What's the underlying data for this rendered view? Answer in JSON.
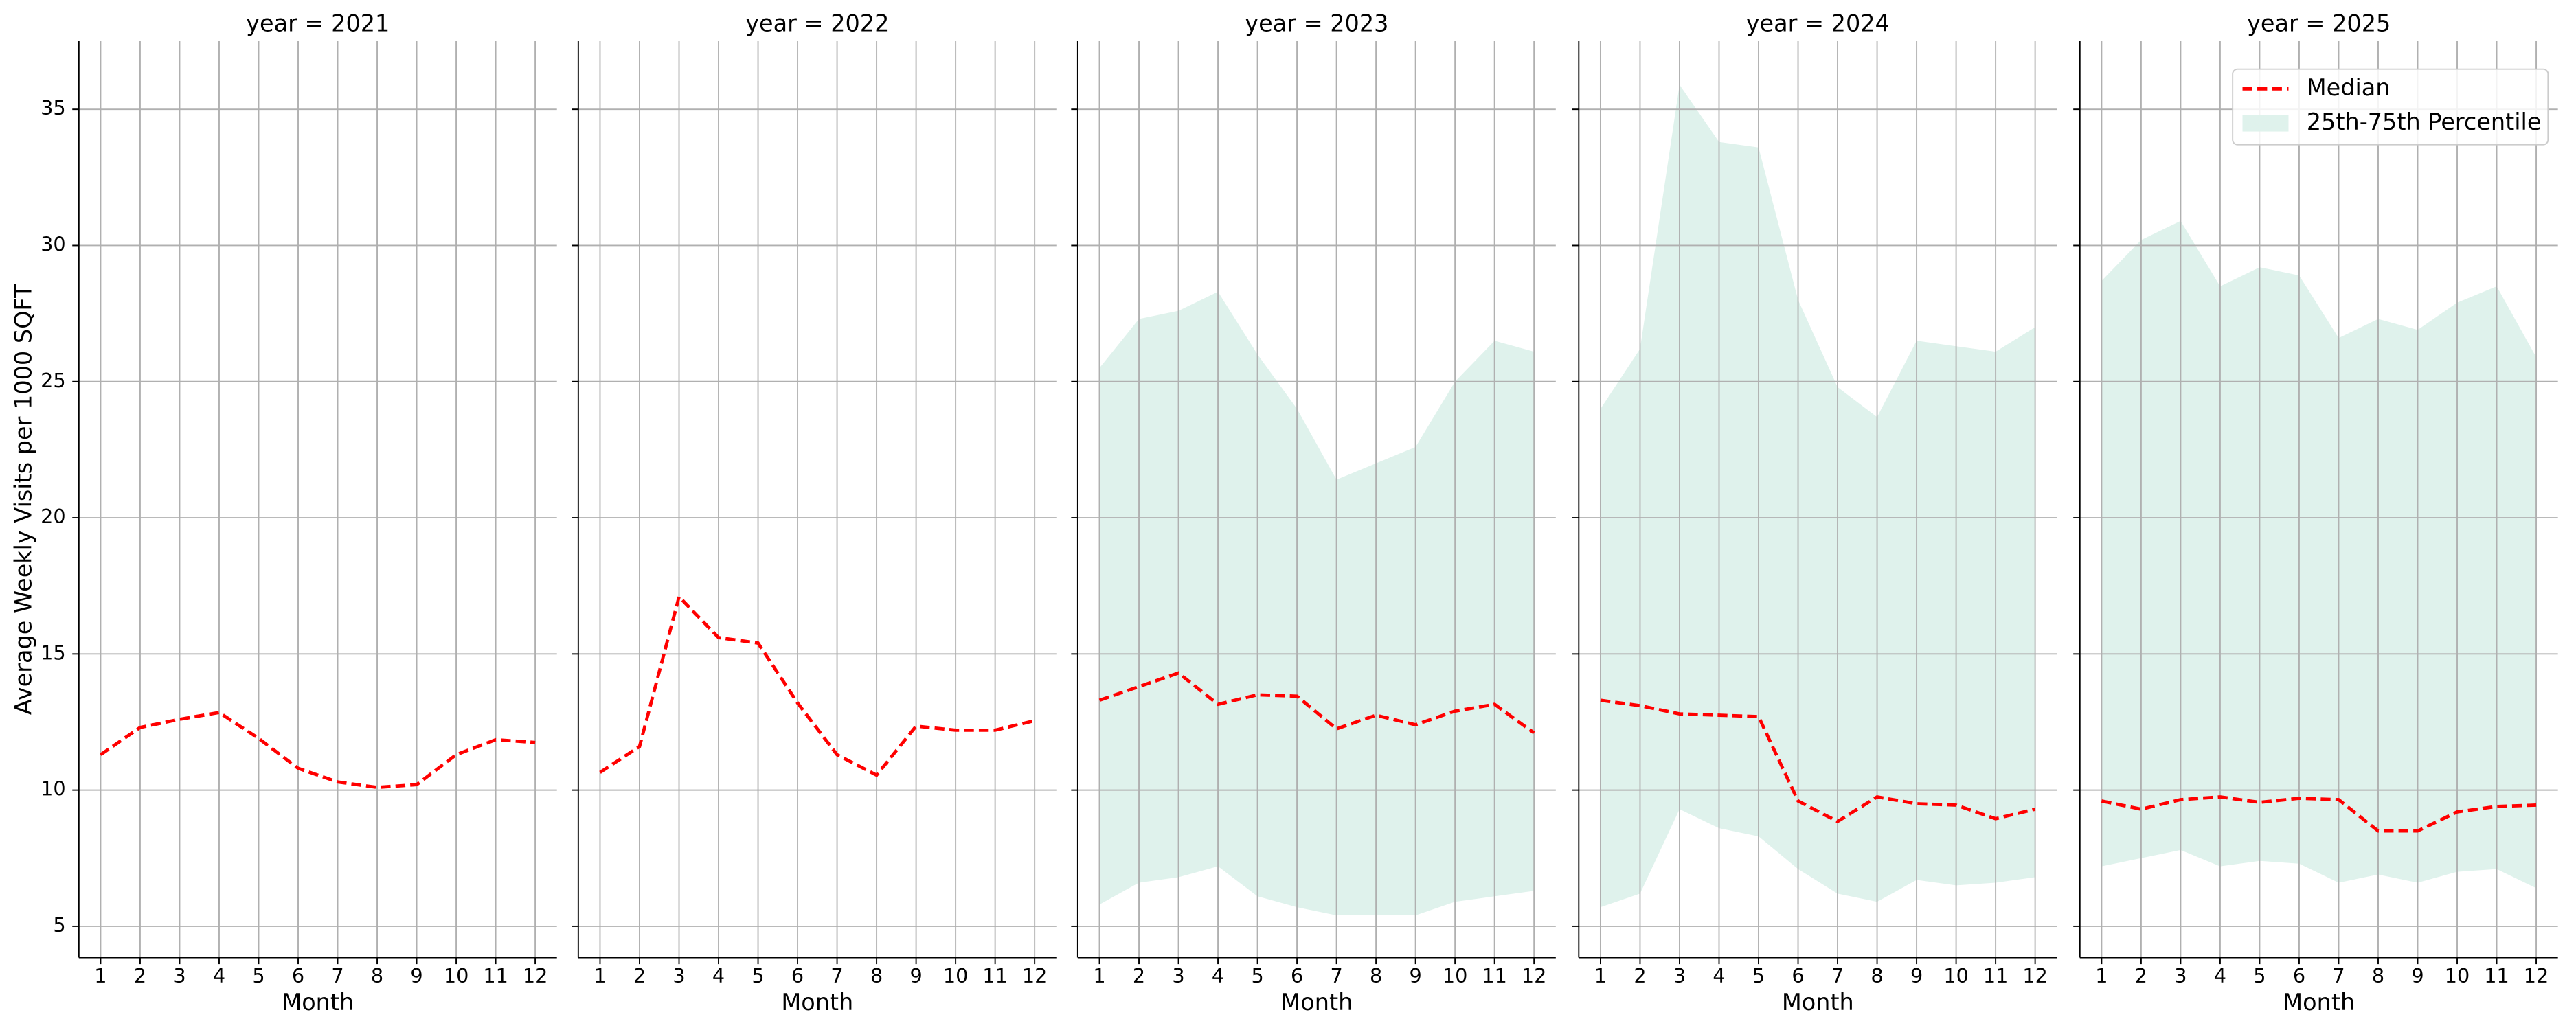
{
  "chart_data": [
    {
      "type": "line",
      "title": "year = 2021",
      "xlabel": "Month",
      "ylabel": "Average Weekly Visits per 1000 SQFT",
      "x": [
        1,
        2,
        3,
        4,
        5,
        6,
        7,
        8,
        9,
        10,
        11,
        12
      ],
      "xlim": [
        0.45,
        12.55
      ],
      "xticks": [
        1,
        2,
        3,
        4,
        5,
        6,
        7,
        8,
        9,
        10,
        11,
        12
      ],
      "ylim": [
        3.85,
        37.5
      ],
      "yticks": [
        5,
        10,
        15,
        20,
        25,
        30,
        35
      ],
      "grid": true,
      "series": [
        {
          "kind": "line",
          "color": "#ff0000",
          "style": "dashed",
          "values": [
            11.3,
            12.3,
            12.6,
            12.85,
            11.9,
            10.8,
            10.3,
            10.1,
            10.2,
            11.3,
            11.85,
            11.75
          ]
        }
      ]
    },
    {
      "type": "line",
      "title": "year = 2022",
      "xlabel": "Month",
      "x": [
        1,
        2,
        3,
        4,
        5,
        6,
        7,
        8,
        9,
        10,
        11,
        12
      ],
      "xlim": [
        0.45,
        12.55
      ],
      "xticks": [
        1,
        2,
        3,
        4,
        5,
        6,
        7,
        8,
        9,
        10,
        11,
        12
      ],
      "ylim": [
        3.85,
        37.5
      ],
      "yticks": [
        5,
        10,
        15,
        20,
        25,
        30,
        35
      ],
      "grid": true,
      "series": [
        {
          "kind": "line",
          "color": "#ff0000",
          "style": "dashed",
          "values": [
            10.65,
            11.6,
            17.1,
            15.6,
            15.4,
            13.2,
            11.3,
            10.55,
            12.35,
            12.2,
            12.2,
            12.55
          ]
        }
      ]
    },
    {
      "type": "line",
      "title": "year = 2023",
      "xlabel": "Month",
      "x": [
        1,
        2,
        3,
        4,
        5,
        6,
        7,
        8,
        9,
        10,
        11,
        12
      ],
      "xlim": [
        0.45,
        12.55
      ],
      "xticks": [
        1,
        2,
        3,
        4,
        5,
        6,
        7,
        8,
        9,
        10,
        11,
        12
      ],
      "ylim": [
        3.85,
        37.5
      ],
      "yticks": [
        5,
        10,
        15,
        20,
        25,
        30,
        35
      ],
      "grid": true,
      "series": [
        {
          "kind": "line",
          "color": "#ff0000",
          "style": "dashed",
          "values": [
            13.3,
            13.8,
            14.3,
            13.15,
            13.5,
            13.45,
            12.25,
            12.75,
            12.4,
            12.9,
            13.15,
            12.1
          ]
        },
        {
          "kind": "band",
          "color": "#dff2ec",
          "lower": [
            5.8,
            6.6,
            6.8,
            7.2,
            6.1,
            5.7,
            5.4,
            5.4,
            5.4,
            5.9,
            6.1,
            6.3
          ],
          "upper": [
            25.5,
            27.3,
            27.6,
            28.3,
            26.0,
            24.0,
            21.4,
            22.0,
            22.6,
            25.0,
            26.5,
            26.1
          ]
        }
      ]
    },
    {
      "type": "line",
      "title": "year = 2024",
      "xlabel": "Month",
      "x": [
        1,
        2,
        3,
        4,
        5,
        6,
        7,
        8,
        9,
        10,
        11,
        12
      ],
      "xlim": [
        0.45,
        12.55
      ],
      "xticks": [
        1,
        2,
        3,
        4,
        5,
        6,
        7,
        8,
        9,
        10,
        11,
        12
      ],
      "ylim": [
        3.85,
        37.5
      ],
      "yticks": [
        5,
        10,
        15,
        20,
        25,
        30,
        35
      ],
      "grid": true,
      "series": [
        {
          "kind": "line",
          "color": "#ff0000",
          "style": "dashed",
          "values": [
            13.3,
            13.1,
            12.8,
            12.75,
            12.7,
            9.6,
            8.85,
            9.75,
            9.5,
            9.45,
            8.95,
            9.3
          ]
        },
        {
          "kind": "band",
          "color": "#dff2ec",
          "lower": [
            5.7,
            6.2,
            9.3,
            8.6,
            8.3,
            7.1,
            6.2,
            5.9,
            6.7,
            6.5,
            6.6,
            6.8
          ],
          "upper": [
            24.0,
            26.2,
            35.9,
            33.8,
            33.6,
            28.0,
            24.8,
            23.7,
            26.5,
            26.3,
            26.1,
            27.0
          ]
        }
      ]
    },
    {
      "type": "line",
      "title": "year = 2025",
      "xlabel": "Month",
      "legend": "upper right",
      "x": [
        1,
        2,
        3,
        4,
        5,
        6,
        7,
        8,
        9,
        10,
        11,
        12
      ],
      "xlim": [
        0.45,
        12.55
      ],
      "xticks": [
        1,
        2,
        3,
        4,
        5,
        6,
        7,
        8,
        9,
        10,
        11,
        12
      ],
      "ylim": [
        3.85,
        37.5
      ],
      "yticks": [
        5,
        10,
        15,
        20,
        25,
        30,
        35
      ],
      "grid": true,
      "series": [
        {
          "kind": "line",
          "name": "Median",
          "color": "#ff0000",
          "style": "dashed",
          "values": [
            9.6,
            9.3,
            9.65,
            9.75,
            9.55,
            9.7,
            9.65,
            8.5,
            8.5,
            9.2,
            9.4,
            9.45
          ]
        },
        {
          "kind": "band",
          "name": "25th-75th Percentile",
          "color": "#dff2ec",
          "lower": [
            7.2,
            7.5,
            7.8,
            7.2,
            7.4,
            7.3,
            6.6,
            6.9,
            6.6,
            7.0,
            7.1,
            6.4
          ],
          "upper": [
            28.7,
            30.2,
            30.9,
            28.5,
            29.2,
            28.9,
            26.6,
            27.3,
            26.9,
            27.9,
            28.5,
            25.9
          ]
        }
      ]
    }
  ]
}
